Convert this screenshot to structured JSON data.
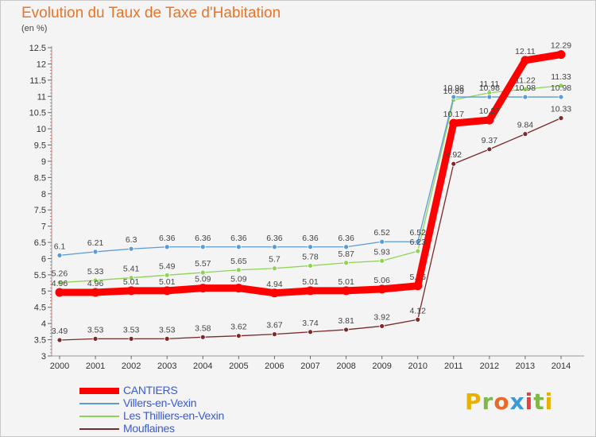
{
  "chart_data": {
    "type": "line",
    "title": "Evolution du Taux de Taxe d'Habitation",
    "unit_label": "(en %)",
    "xlabel": "",
    "ylabel": "",
    "x": [
      "2000",
      "2001",
      "2002",
      "2003",
      "2004",
      "2005",
      "2006",
      "2007",
      "2008",
      "2009",
      "2010",
      "2011",
      "2012",
      "2013",
      "2014"
    ],
    "ylim": [
      3,
      12.5
    ],
    "yticks": [
      "3",
      "3.5",
      "4",
      "4.5",
      "5",
      "5.5",
      "6",
      "6.5",
      "7",
      "7.5",
      "8",
      "8.5",
      "9",
      "9.5",
      "10",
      "10.5",
      "11",
      "11.5",
      "12",
      "12.5"
    ],
    "grid": false,
    "legend_position": "bottom-left",
    "series": [
      {
        "name": "CANTIERS",
        "color": "#ff0000",
        "values": [
          4.96,
          4.96,
          5.01,
          5.01,
          5.09,
          5.09,
          4.94,
          5.01,
          5.01,
          5.06,
          5.16,
          10.17,
          10.27,
          12.11,
          12.29
        ],
        "labels": [
          "4.96",
          "4.96",
          "5.01",
          "5.01",
          "5.09",
          "5.09",
          "4.94",
          "5.01",
          "5.01",
          "5.06",
          "5.16",
          "10.17",
          "10.27",
          "12.11",
          "12.29"
        ]
      },
      {
        "name": "Villers-en-Vexin",
        "color": "#5b9bd5",
        "values": [
          6.1,
          6.21,
          6.3,
          6.36,
          6.36,
          6.36,
          6.36,
          6.36,
          6.36,
          6.52,
          6.52,
          10.98,
          10.98,
          10.98,
          10.98
        ],
        "labels": [
          "6.1",
          "6.21",
          "6.3",
          "6.36",
          "6.36",
          "6.36",
          "6.36",
          "6.36",
          "6.36",
          "6.52",
          "6.52",
          "10.98",
          "10.98",
          "10.98",
          "10.98"
        ]
      },
      {
        "name": "Les Thilliers-en-Vexin",
        "color": "#8ed454",
        "values": [
          5.26,
          5.33,
          5.41,
          5.49,
          5.57,
          5.65,
          5.7,
          5.78,
          5.87,
          5.93,
          6.23,
          10.89,
          11.11,
          11.22,
          11.33
        ],
        "labels": [
          "5.26",
          "5.33",
          "5.41",
          "5.49",
          "5.57",
          "5.65",
          "5.7",
          "5.78",
          "5.87",
          "5.93",
          "6.23",
          "10.89",
          "11.11",
          "11.22",
          "11.33"
        ]
      },
      {
        "name": "Mouflaines",
        "color": "#7a2a2a",
        "values": [
          3.49,
          3.53,
          3.53,
          3.53,
          3.58,
          3.62,
          3.67,
          3.74,
          3.81,
          3.92,
          4.12,
          8.92,
          9.37,
          9.84,
          10.33
        ],
        "labels": [
          "3.49",
          "3.53",
          "3.53",
          "3.53",
          "3.58",
          "3.62",
          "3.67",
          "3.74",
          "3.81",
          "3.92",
          "4.12",
          "8.92",
          "9.37",
          "9.84",
          "10.33"
        ]
      }
    ]
  },
  "logo": {
    "letters": [
      "P",
      "r",
      "o",
      "x",
      "i",
      "t",
      "i"
    ],
    "colors": [
      "#e8b000",
      "#7db848",
      "#e86a2a",
      "#3a9ad9",
      "#e84040",
      "#7db848",
      "#e8b000"
    ]
  }
}
